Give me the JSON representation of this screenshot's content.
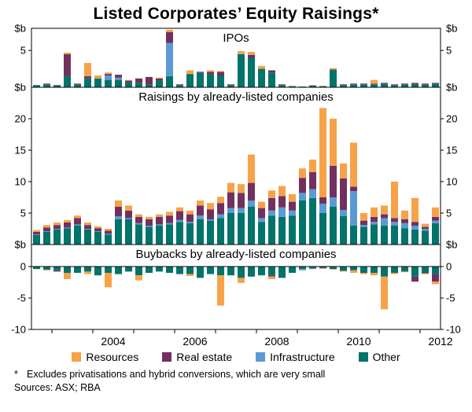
{
  "title": "Listed Corporates’ Equity Raisings*",
  "legend": [
    {
      "label": "Resources",
      "color": "#F7A249"
    },
    {
      "label": "Real estate",
      "color": "#72305F"
    },
    {
      "label": "Infrastructure",
      "color": "#5B9BD5"
    },
    {
      "label": "Other",
      "color": "#00736A"
    }
  ],
  "footnote": {
    "marker": "*",
    "text": "Excludes privatisations and hybrid conversions, which are very small",
    "sources": "Sources: ASX; RBA"
  },
  "chart_data": {
    "type": "bar",
    "stacked": true,
    "x_unit": "quarter",
    "quarters": [
      "2002Q3",
      "2002Q4",
      "2003Q1",
      "2003Q2",
      "2003Q3",
      "2003Q4",
      "2004Q1",
      "2004Q2",
      "2004Q3",
      "2004Q4",
      "2005Q1",
      "2005Q2",
      "2005Q3",
      "2005Q4",
      "2006Q1",
      "2006Q2",
      "2006Q3",
      "2006Q4",
      "2007Q1",
      "2007Q2",
      "2007Q3",
      "2007Q4",
      "2008Q1",
      "2008Q2",
      "2008Q3",
      "2008Q4",
      "2009Q1",
      "2009Q2",
      "2009Q3",
      "2009Q4",
      "2010Q1",
      "2010Q2",
      "2010Q3",
      "2010Q4",
      "2011Q1",
      "2011Q2",
      "2011Q3",
      "2011Q4",
      "2012Q1",
      "2012Q2"
    ],
    "x_tick_years": [
      2004,
      2006,
      2008,
      2010,
      2012
    ],
    "stack_order": [
      "Other",
      "Infrastructure",
      "Real estate",
      "Resources"
    ],
    "panels": [
      {
        "title": "IPOs",
        "unit": "$b",
        "ylim": [
          0,
          8
        ],
        "yticks": [
          5
        ],
        "series": {
          "Other": [
            0.3,
            0.4,
            0.3,
            1.5,
            0.4,
            1.2,
            1.2,
            1.0,
            1.0,
            0.7,
            0.6,
            0.4,
            0.9,
            1.5,
            0.3,
            1.8,
            2.0,
            1.8,
            1.6,
            0.3,
            4.5,
            4.0,
            2.5,
            2.0,
            0.3,
            0.15,
            0.1,
            0.25,
            0.15,
            2.4,
            0.3,
            0.4,
            0.4,
            0.4,
            0.5,
            0.3,
            0.4,
            0.45,
            0.4,
            0.5
          ],
          "Infrastructure": [
            0,
            0,
            0,
            0,
            0,
            0,
            0,
            0.6,
            0.3,
            0,
            0,
            0,
            0,
            4.5,
            0,
            0,
            0,
            0,
            0,
            0,
            0,
            0,
            0,
            0,
            0,
            0,
            0,
            0,
            0,
            0,
            0,
            0,
            0,
            0,
            0,
            0,
            0,
            0,
            0,
            0
          ],
          "Real estate": [
            0,
            0.1,
            0,
            3.0,
            0.1,
            0.3,
            0,
            0.2,
            0.4,
            0.2,
            0.6,
            1.0,
            0.3,
            1.5,
            0.1,
            0,
            0.1,
            0.3,
            0.5,
            0.1,
            0,
            0.4,
            0,
            0.3,
            0.1,
            0,
            0,
            0,
            0,
            0,
            0.1,
            0.1,
            0.1,
            0.1,
            0.1,
            0.1,
            0.1,
            0.15,
            0.1,
            0.1
          ],
          "Resources": [
            0,
            0,
            0,
            0.2,
            0,
            1.8,
            0.4,
            0.2,
            0,
            0.1,
            0,
            0,
            0.1,
            0.3,
            0,
            0.5,
            0,
            0.2,
            0.1,
            0,
            0.4,
            0.4,
            0.4,
            0,
            0,
            0.05,
            0,
            0.05,
            0.05,
            0.2,
            0,
            0,
            0,
            0.5,
            0,
            0,
            0,
            0,
            0,
            0
          ]
        }
      },
      {
        "title": "Raisings by already-listed companies",
        "unit": "$b",
        "ylim": [
          0,
          25
        ],
        "yticks": [
          5,
          10,
          15,
          20
        ],
        "series": {
          "Other": [
            1.5,
            2.0,
            2.4,
            2.6,
            3.0,
            2.4,
            2.0,
            1.6,
            4.0,
            4.0,
            3.2,
            2.8,
            3.0,
            3.2,
            3.6,
            3.4,
            4.0,
            3.8,
            4.2,
            5.0,
            5.0,
            6.0,
            3.6,
            4.6,
            4.4,
            4.6,
            7.0,
            7.4,
            5.0,
            6.0,
            4.5,
            3.0,
            2.8,
            3.2,
            3.0,
            3.0,
            2.6,
            2.4,
            2.2,
            3.4
          ],
          "Infrastructure": [
            0.1,
            0.1,
            0.1,
            0.1,
            0.2,
            0.1,
            0.1,
            0.1,
            0.5,
            0.2,
            0.2,
            0.2,
            0.2,
            0.2,
            0.3,
            0.2,
            0.6,
            0.2,
            0.6,
            0.8,
            0.8,
            1.0,
            0.6,
            0.8,
            1.5,
            0.8,
            1.2,
            1.4,
            1.5,
            1.5,
            1.0,
            5.5,
            0.3,
            0.4,
            1.2,
            0.6,
            0.8,
            0.6,
            0.3,
            0.4
          ],
          "Real estate": [
            0.4,
            0.6,
            0.6,
            0.8,
            1.0,
            0.6,
            0.5,
            0.5,
            1.5,
            1.2,
            1.0,
            1.0,
            1.2,
            1.2,
            1.4,
            1.2,
            1.6,
            1.6,
            1.8,
            2.5,
            2.4,
            2.8,
            1.6,
            2.0,
            1.8,
            1.4,
            2.4,
            2.7,
            1.0,
            5.0,
            5.0,
            0.7,
            0.7,
            0.8,
            0.6,
            0.6,
            0.6,
            0.6,
            0.3,
            0.6
          ],
          "Resources": [
            0.3,
            0.4,
            0.4,
            0.4,
            0.4,
            0.4,
            0.3,
            0.3,
            1.0,
            0.8,
            0.4,
            0.4,
            0.4,
            0.6,
            0.6,
            0.6,
            0.8,
            1.0,
            1.0,
            1.5,
            1.4,
            4.5,
            1.0,
            1.2,
            1.6,
            1.2,
            1.5,
            2.0,
            14.2,
            7.5,
            2.4,
            7.0,
            1.2,
            1.5,
            1.4,
            5.8,
            1.4,
            3.8,
            0.5,
            1.5
          ]
        }
      },
      {
        "title": "Buybacks by already-listed companies",
        "unit": "$b",
        "ylim": [
          -10,
          3.5
        ],
        "yticks": [
          0,
          -5,
          -10
        ],
        "series": {
          "Other": [
            -0.4,
            -0.5,
            -0.6,
            -1.0,
            -1.0,
            -0.8,
            -1.4,
            -1.0,
            -1.2,
            -0.8,
            -1.4,
            -1.0,
            -0.8,
            -1.0,
            -1.2,
            -1.2,
            -1.8,
            -1.2,
            -1.4,
            -1.4,
            -1.8,
            -1.6,
            -1.4,
            -1.4,
            -1.8,
            -1.0,
            -0.4,
            -0.3,
            -0.2,
            -0.4,
            -0.7,
            -0.6,
            -1.0,
            -1.0,
            -1.6,
            -1.0,
            -0.8,
            -1.6,
            -1.0,
            -1.2
          ],
          "Infrastructure": [
            0,
            0,
            0,
            0,
            0,
            0,
            0,
            0,
            0,
            0,
            0,
            0,
            0,
            0,
            0,
            0,
            0,
            0,
            0,
            0,
            0,
            0,
            0,
            0,
            0,
            0,
            -0.2,
            -0.1,
            0,
            0,
            0,
            0,
            0,
            0,
            0,
            0,
            0,
            0,
            0,
            0
          ],
          "Real estate": [
            0,
            0,
            -0.2,
            0,
            0,
            0,
            0,
            0,
            0,
            0,
            0,
            0,
            0,
            0,
            0,
            0,
            0,
            0,
            0,
            0,
            0,
            0,
            0,
            -0.2,
            0,
            0,
            0,
            0,
            -0.1,
            0,
            0,
            0,
            0,
            0,
            0,
            0,
            0,
            -0.8,
            -0.1,
            -1.2
          ],
          "Resources": [
            0,
            -0.1,
            0,
            -1.0,
            0,
            -0.4,
            0,
            -2.3,
            0,
            0,
            -0.8,
            0,
            0,
            0,
            0,
            -0.3,
            0,
            0,
            -4.8,
            0,
            -0.8,
            0,
            0,
            -0.4,
            0,
            0,
            0,
            0,
            0,
            -0.1,
            -0.1,
            -0.4,
            -0.2,
            -0.4,
            -5.2,
            -0.2,
            -0.1,
            0,
            -0.1,
            -0.4
          ]
        }
      }
    ]
  }
}
